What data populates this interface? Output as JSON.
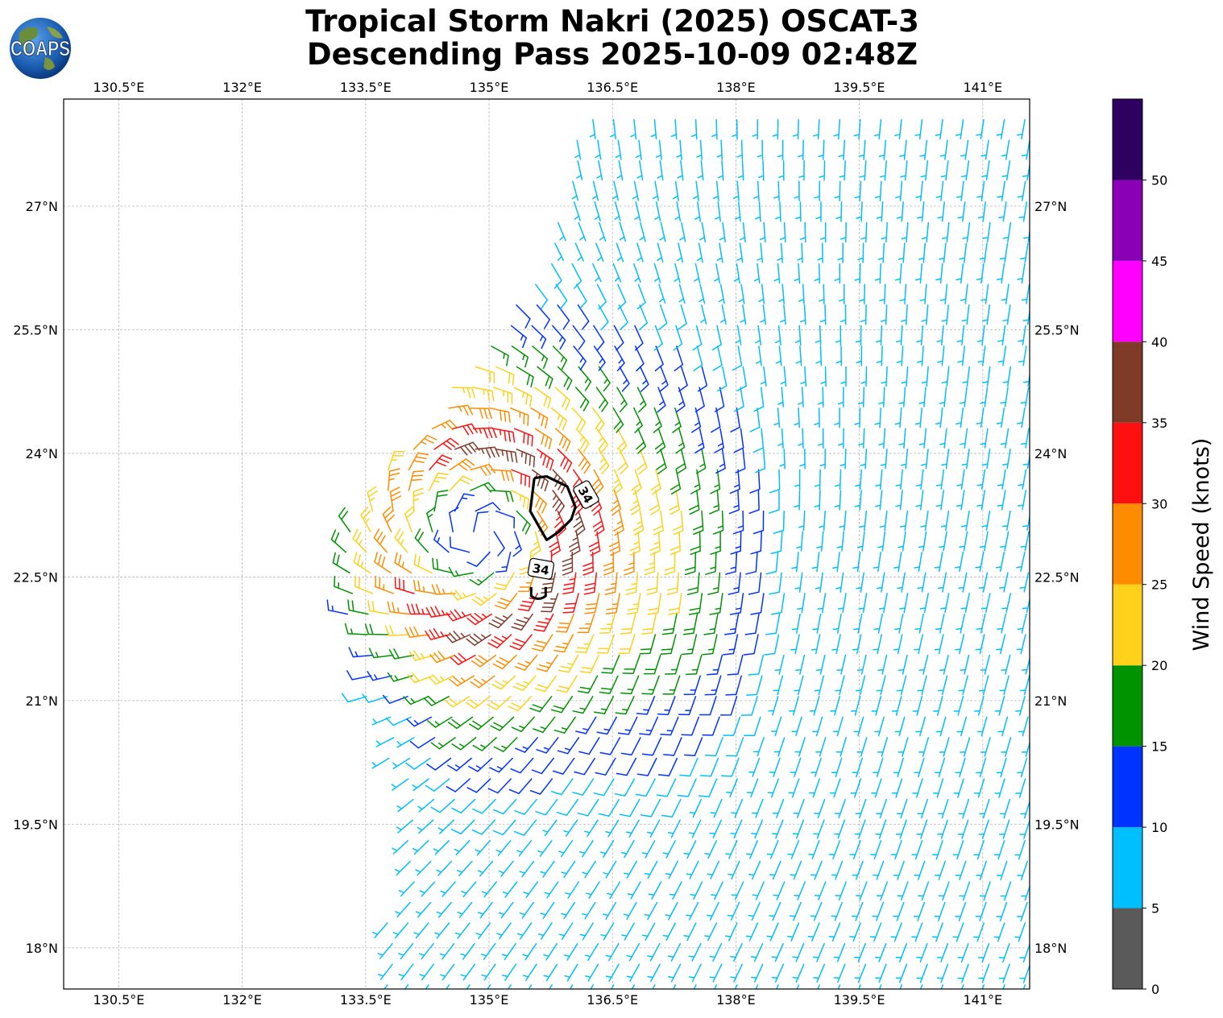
{
  "title": {
    "line1": "Tropical Storm Nakri (2025) OSCAT-3",
    "line2": "Descending Pass 2025-10-09 02:48Z"
  },
  "logo": {
    "text": "COAPS",
    "icon": "globe-icon"
  },
  "map": {
    "lon_range": [
      129.83,
      141.57
    ],
    "lat_range": [
      17.5,
      28.3
    ],
    "gridlines": true,
    "lon_ticks": [
      {
        "value": 130.5,
        "label": "130.5°E"
      },
      {
        "value": 132.0,
        "label": "132°E"
      },
      {
        "value": 133.5,
        "label": "133.5°E"
      },
      {
        "value": 135.0,
        "label": "135°E"
      },
      {
        "value": 136.5,
        "label": "136.5°E"
      },
      {
        "value": 138.0,
        "label": "138°E"
      },
      {
        "value": 139.5,
        "label": "139.5°E"
      },
      {
        "value": 141.0,
        "label": "141°E"
      }
    ],
    "lat_ticks": [
      {
        "value": 18.0,
        "label": "18°N"
      },
      {
        "value": 19.5,
        "label": "19.5°N"
      },
      {
        "value": 21.0,
        "label": "21°N"
      },
      {
        "value": 22.5,
        "label": "22.5°N"
      },
      {
        "value": 24.0,
        "label": "24°N"
      },
      {
        "value": 25.5,
        "label": "25.5°N"
      },
      {
        "value": 27.0,
        "label": "27°N"
      }
    ],
    "storm_center": {
      "lon": 134.9,
      "lat": 23.0
    },
    "contour": {
      "level_label": "34",
      "units": "knots",
      "outline": [
        [
          135.55,
          23.7
        ],
        [
          135.7,
          23.72
        ],
        [
          135.95,
          23.6
        ],
        [
          136.05,
          23.35
        ],
        [
          136.0,
          23.2
        ],
        [
          135.85,
          23.05
        ],
        [
          135.7,
          22.95
        ],
        [
          135.5,
          23.3
        ],
        [
          135.55,
          23.7
        ]
      ],
      "label_positions": [
        {
          "lon": 136.18,
          "lat": 23.5,
          "angle": 60
        },
        {
          "lon": 135.63,
          "lat": 22.6,
          "angle": 10
        }
      ]
    }
  },
  "colorbar": {
    "title": "Wind Speed (knots)",
    "range": [
      0,
      55
    ],
    "bins": [
      {
        "min": 0,
        "max": 5,
        "color": "#5a5a5a"
      },
      {
        "min": 5,
        "max": 10,
        "color": "#00bfff"
      },
      {
        "min": 10,
        "max": 15,
        "color": "#0033ff"
      },
      {
        "min": 15,
        "max": 20,
        "color": "#009300"
      },
      {
        "min": 20,
        "max": 25,
        "color": "#ffd11a"
      },
      {
        "min": 25,
        "max": 30,
        "color": "#ff8c00"
      },
      {
        "min": 30,
        "max": 35,
        "color": "#ff1010"
      },
      {
        "min": 35,
        "max": 40,
        "color": "#7f3a28"
      },
      {
        "min": 40,
        "max": 45,
        "color": "#ff00ff"
      },
      {
        "min": 45,
        "max": 50,
        "color": "#8a00b4"
      },
      {
        "min": 50,
        "max": 55,
        "color": "#2e0060"
      }
    ],
    "ticks": [
      "0",
      "5",
      "10",
      "15",
      "20",
      "25",
      "30",
      "35",
      "40",
      "45",
      "50"
    ]
  }
}
